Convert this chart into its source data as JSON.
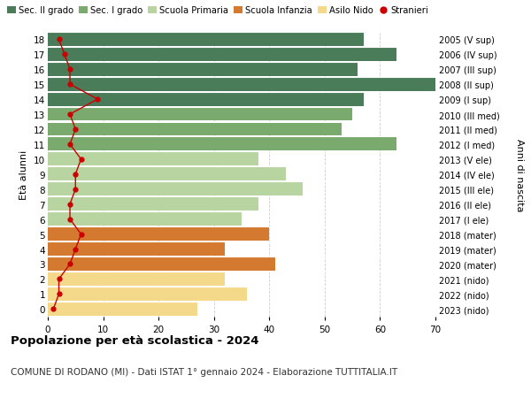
{
  "ages": [
    18,
    17,
    16,
    15,
    14,
    13,
    12,
    11,
    10,
    9,
    8,
    7,
    6,
    5,
    4,
    3,
    2,
    1,
    0
  ],
  "years": [
    "2005 (V sup)",
    "2006 (IV sup)",
    "2007 (III sup)",
    "2008 (II sup)",
    "2009 (I sup)",
    "2010 (III med)",
    "2011 (II med)",
    "2012 (I med)",
    "2013 (V ele)",
    "2014 (IV ele)",
    "2015 (III ele)",
    "2016 (II ele)",
    "2017 (I ele)",
    "2018 (mater)",
    "2019 (mater)",
    "2020 (mater)",
    "2021 (nido)",
    "2022 (nido)",
    "2023 (nido)"
  ],
  "bar_values": [
    57,
    63,
    56,
    70,
    57,
    55,
    53,
    63,
    38,
    43,
    46,
    38,
    35,
    40,
    32,
    41,
    32,
    36,
    27
  ],
  "stranieri_values": [
    2,
    3,
    4,
    4,
    9,
    4,
    5,
    4,
    6,
    5,
    5,
    4,
    4,
    6,
    5,
    4,
    2,
    2,
    1
  ],
  "bar_colors": [
    "#4a7c59",
    "#4a7c59",
    "#4a7c59",
    "#4a7c59",
    "#4a7c59",
    "#7aaa6e",
    "#7aaa6e",
    "#7aaa6e",
    "#b8d4a0",
    "#b8d4a0",
    "#b8d4a0",
    "#b8d4a0",
    "#b8d4a0",
    "#d47a30",
    "#d47a30",
    "#d47a30",
    "#f5d98b",
    "#f5d98b",
    "#f5d98b"
  ],
  "legend_labels": [
    "Sec. II grado",
    "Sec. I grado",
    "Scuola Primaria",
    "Scuola Infanzia",
    "Asilo Nido",
    "Stranieri"
  ],
  "legend_colors": [
    "#4a7c59",
    "#7aaa6e",
    "#b8d4a0",
    "#d47a30",
    "#f5d98b",
    "#cc0000"
  ],
  "ylabel_left": "Età alunni",
  "ylabel_right": "Anni di nascita",
  "title": "Popolazione per età scolastica - 2024",
  "subtitle": "COMUNE DI RODANO (MI) - Dati ISTAT 1° gennaio 2024 - Elaborazione TUTTITALIA.IT",
  "xlim": [
    0,
    70
  ],
  "background_color": "#ffffff",
  "grid_color": "#cccccc",
  "stranieri_color": "#cc0000",
  "bar_height": 0.88
}
